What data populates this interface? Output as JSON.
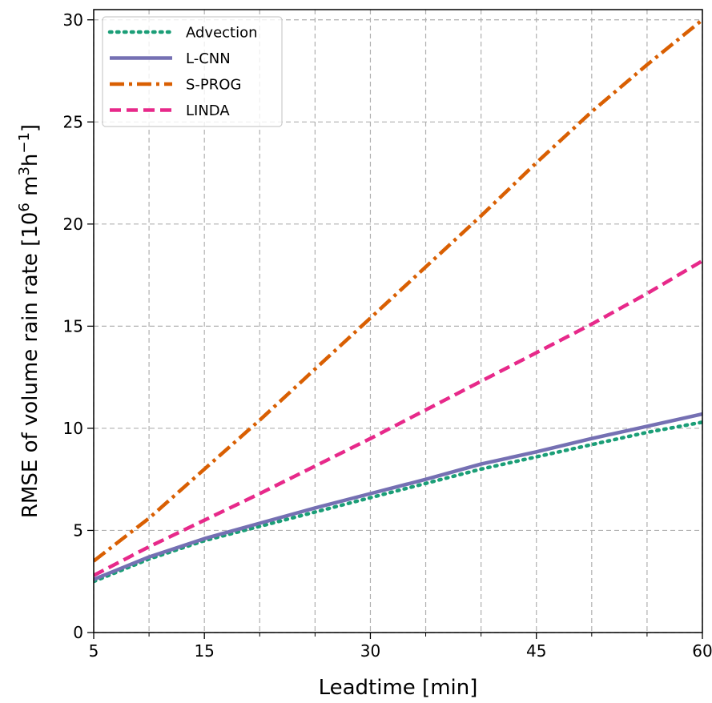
{
  "chart_data": {
    "type": "line",
    "xlabel": "Leadtime [min]",
    "ylabel": {
      "base": "RMSE of volume rain rate [10",
      "exp1": "6",
      "mid": " m",
      "exp2": "3",
      "mid2": "h",
      "exp3": "−1",
      "end": "]"
    },
    "xlim": [
      5,
      60
    ],
    "ylim": [
      0,
      30.5
    ],
    "xticks": [
      5,
      15,
      30,
      45,
      60
    ],
    "xtick_labels": [
      "5",
      "15",
      "30",
      "45",
      "60"
    ],
    "yticks": [
      0,
      5,
      10,
      15,
      20,
      25,
      30
    ],
    "ytick_labels": [
      "0",
      "5",
      "10",
      "15",
      "20",
      "25",
      "30"
    ],
    "x_minor_ticks": [
      10,
      20,
      25,
      35,
      40,
      50,
      55
    ],
    "grid": true,
    "legend_position": "top-left",
    "x": [
      5,
      10,
      15,
      20,
      25,
      30,
      35,
      40,
      45,
      50,
      55,
      60
    ],
    "series": [
      {
        "name": "Advection",
        "color": "#1b9e77",
        "style": "dotted",
        "values": [
          2.5,
          3.6,
          4.5,
          5.2,
          5.9,
          6.6,
          7.3,
          8.0,
          8.6,
          9.2,
          9.8,
          10.3
        ]
      },
      {
        "name": "L-CNN",
        "color": "#7570b3",
        "style": "solid",
        "values": [
          2.6,
          3.7,
          4.6,
          5.35,
          6.1,
          6.8,
          7.5,
          8.25,
          8.85,
          9.5,
          10.1,
          10.7
        ]
      },
      {
        "name": "S-PROG",
        "color": "#d95f02",
        "style": "dashdot",
        "values": [
          3.5,
          5.6,
          8.0,
          10.4,
          12.9,
          15.4,
          17.9,
          20.4,
          23.0,
          25.5,
          27.8,
          30.0
        ]
      },
      {
        "name": "LINDA",
        "color": "#e7298a",
        "style": "dashed",
        "values": [
          2.8,
          4.2,
          5.5,
          6.8,
          8.15,
          9.5,
          10.9,
          12.3,
          13.7,
          15.1,
          16.6,
          18.2
        ]
      }
    ]
  }
}
